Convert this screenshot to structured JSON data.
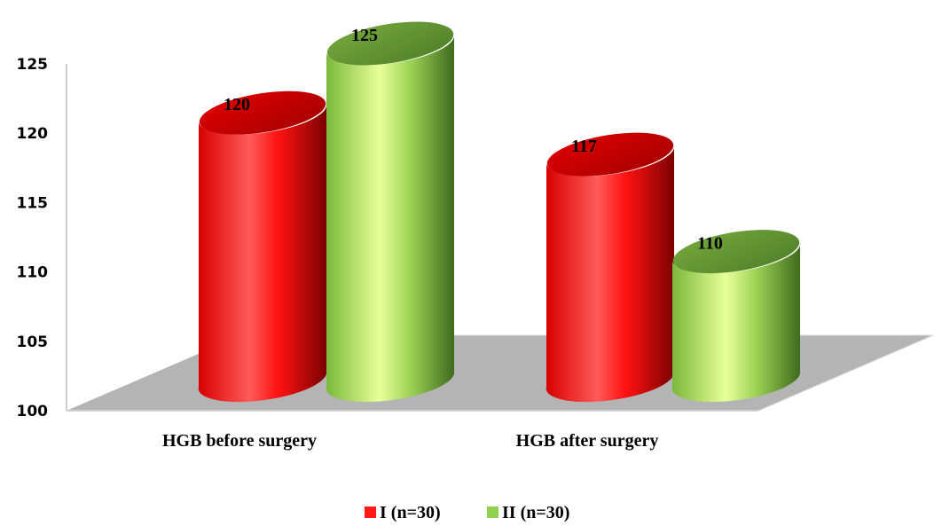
{
  "chart_data": {
    "type": "bar",
    "categories": [
      "HGB before surgery",
      "HGB after surgery"
    ],
    "series": [
      {
        "name": "I (n=30)",
        "values": [
          120,
          117
        ],
        "color": "#ff1a1a"
      },
      {
        "name": "II (n=30)",
        "values": [
          125,
          110
        ],
        "color": "#92d050"
      }
    ],
    "yticks": [
      "100",
      "105",
      "110",
      "115",
      "120",
      "125"
    ],
    "ylim": [
      100,
      125
    ],
    "data_labels": [
      [
        "120",
        "117"
      ],
      [
        "125",
        "110"
      ]
    ],
    "legend_position": "bottom",
    "grid": false,
    "style": "3d-cylinder"
  }
}
